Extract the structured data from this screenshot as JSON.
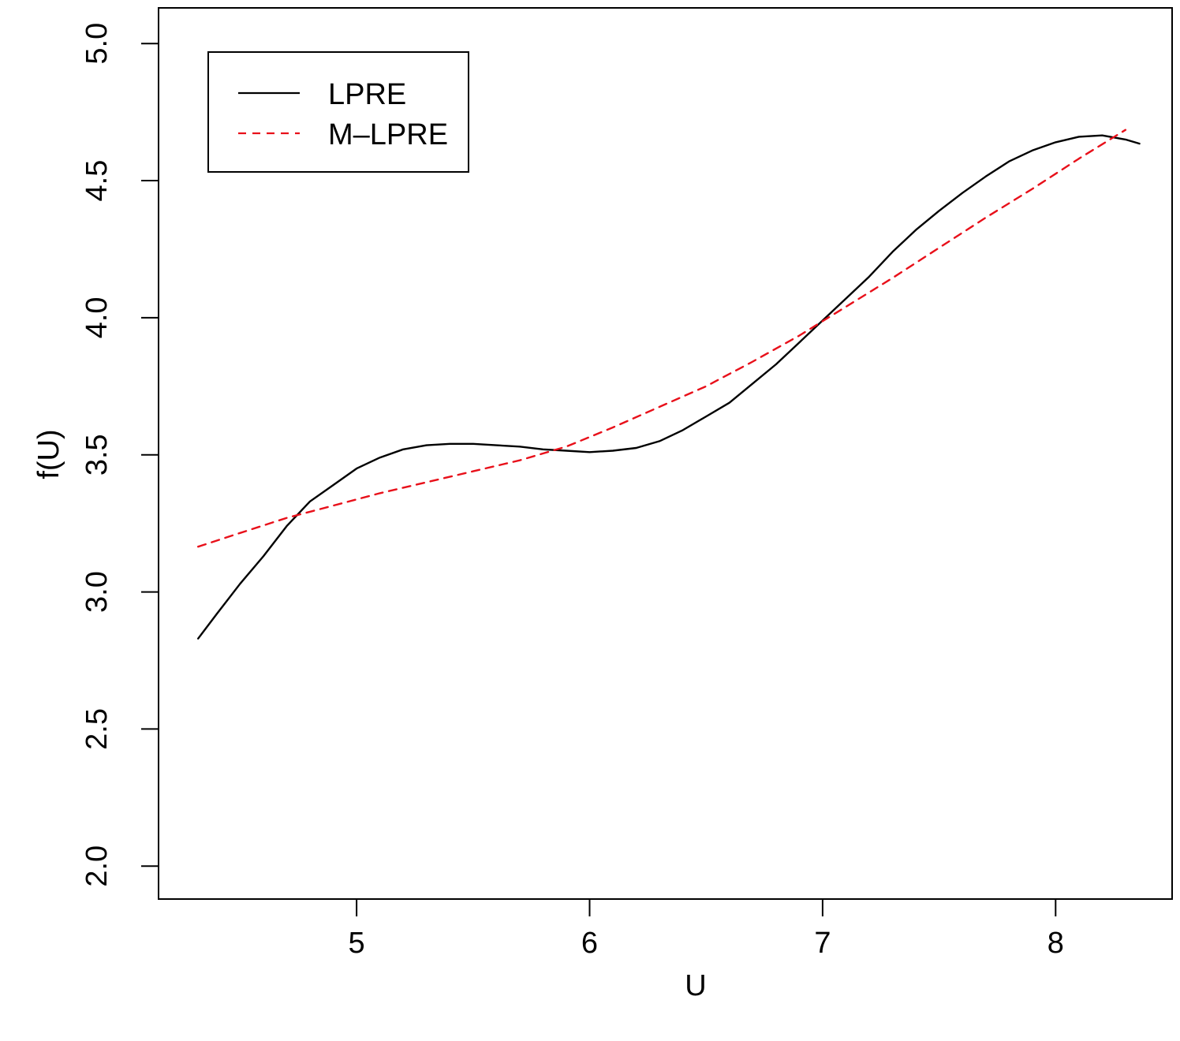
{
  "chart_data": {
    "type": "line",
    "title": "",
    "xlabel": "U",
    "ylabel": "f(U)",
    "xlim": [
      4.15,
      8.5
    ],
    "ylim": [
      1.88,
      5.13
    ],
    "xticks": [
      5,
      6,
      7,
      8
    ],
    "xtick_labels": [
      "5",
      "6",
      "7",
      "8"
    ],
    "yticks": [
      2.0,
      2.5,
      3.0,
      3.5,
      4.0,
      4.5,
      5.0
    ],
    "ytick_labels": [
      "2.0",
      "2.5",
      "3.0",
      "3.5",
      "4.0",
      "4.5",
      "5.0"
    ],
    "grid": false,
    "legend_position": "top-left",
    "series": [
      {
        "name": "LPRE",
        "color": "#000000",
        "line_style": "solid",
        "x": [
          4.32,
          4.4,
          4.5,
          4.6,
          4.7,
          4.8,
          4.9,
          5.0,
          5.1,
          5.2,
          5.3,
          5.4,
          5.5,
          5.6,
          5.7,
          5.8,
          5.9,
          6.0,
          6.1,
          6.2,
          6.3,
          6.4,
          6.5,
          6.6,
          6.7,
          6.8,
          6.9,
          7.0,
          7.1,
          7.2,
          7.3,
          7.4,
          7.5,
          7.6,
          7.7,
          7.8,
          7.9,
          8.0,
          8.1,
          8.2,
          8.3,
          8.36
        ],
        "y": [
          2.83,
          2.92,
          3.03,
          3.13,
          3.24,
          3.33,
          3.39,
          3.45,
          3.49,
          3.52,
          3.535,
          3.54,
          3.54,
          3.535,
          3.53,
          3.52,
          3.515,
          3.51,
          3.515,
          3.525,
          3.55,
          3.59,
          3.64,
          3.69,
          3.76,
          3.83,
          3.91,
          3.99,
          4.07,
          4.15,
          4.24,
          4.32,
          4.39,
          4.455,
          4.515,
          4.57,
          4.61,
          4.64,
          4.66,
          4.665,
          4.65,
          4.635
        ]
      },
      {
        "name": "M–LPRE",
        "color": "#e8101a",
        "line_style": "dashed",
        "x": [
          4.32,
          4.5,
          4.7,
          4.9,
          5.1,
          5.3,
          5.5,
          5.7,
          5.9,
          6.1,
          6.3,
          6.5,
          6.7,
          6.9,
          7.1,
          7.3,
          7.5,
          7.7,
          7.9,
          8.1,
          8.3
        ],
        "y": [
          3.165,
          3.215,
          3.27,
          3.315,
          3.36,
          3.4,
          3.44,
          3.48,
          3.53,
          3.6,
          3.675,
          3.75,
          3.84,
          3.935,
          4.04,
          4.145,
          4.255,
          4.365,
          4.47,
          4.58,
          4.685
        ]
      }
    ]
  }
}
